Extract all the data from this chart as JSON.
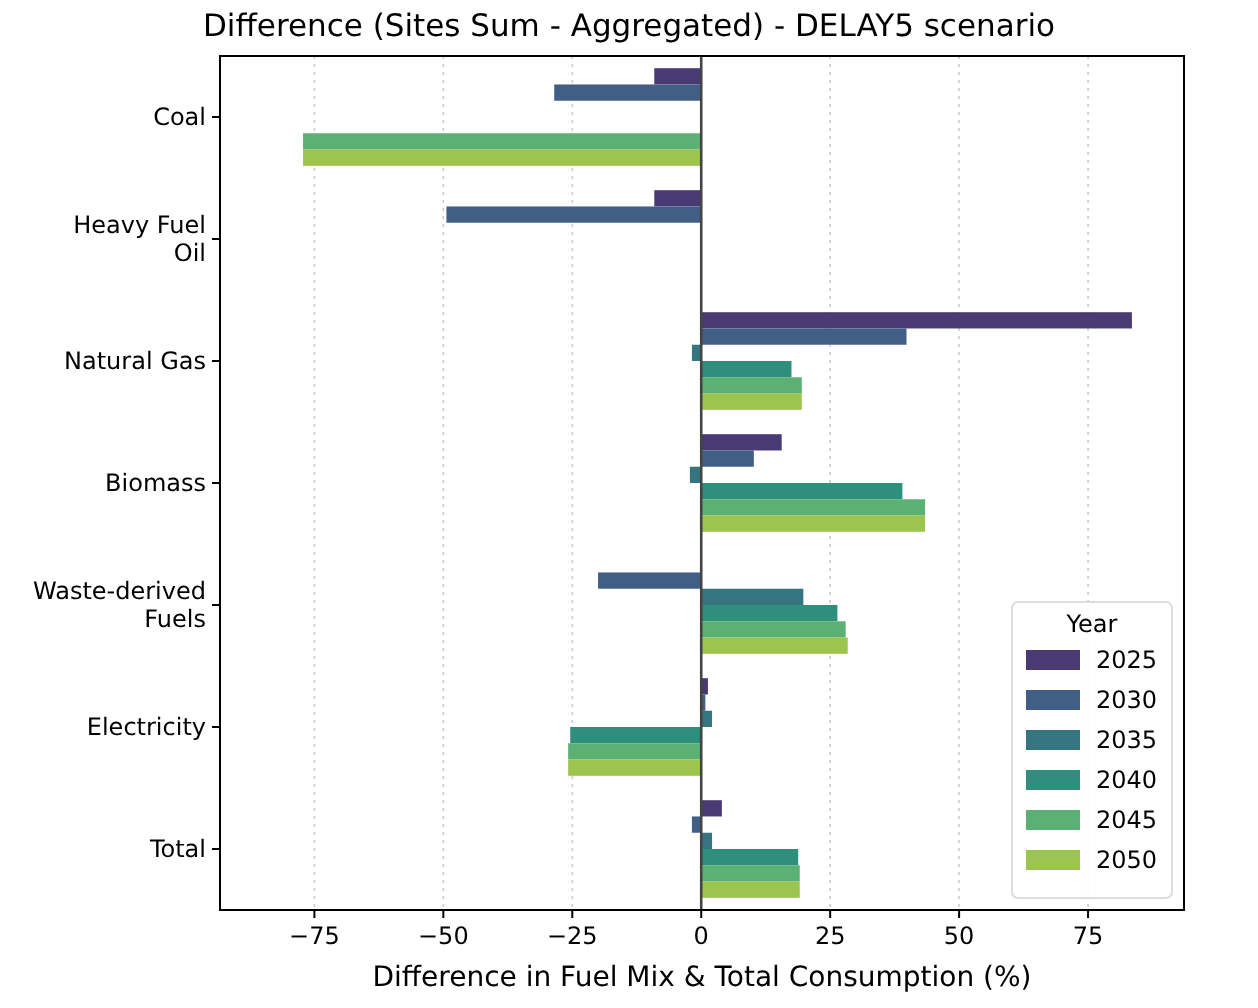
{
  "chart_data": {
    "type": "bar",
    "orientation": "horizontal",
    "title": "Difference (Sites Sum - Aggregated) - DELAY5 scenario",
    "xlabel": "Difference in Fuel Mix & Total Consumption (%)",
    "legend_title": "Year",
    "legend": "bottom right",
    "grid": "x",
    "categories": [
      "Coal",
      "Heavy Fuel Oil",
      "Natural Gas",
      "Biomass",
      "Waste-derived Fuels",
      "Electricity",
      "Total"
    ],
    "xlim": [
      -93.3,
      93.6
    ],
    "xticks": [
      {
        "value": -75,
        "label": "−75"
      },
      {
        "value": -50,
        "label": "−50"
      },
      {
        "value": -25,
        "label": "−25"
      },
      0,
      25,
      50,
      75
    ],
    "ref_lines": [
      {
        "axis": "x",
        "value": 0,
        "color": "#444444"
      }
    ],
    "series": [
      {
        "name": "2025",
        "color": "#4a3a74",
        "values": [
          -9.1,
          -9.1,
          83.5,
          15.6,
          0,
          1.3,
          4.0
        ]
      },
      {
        "name": "2030",
        "color": "#415e85",
        "values": [
          -28.5,
          -49.4,
          39.8,
          10.2,
          -20.0,
          0.8,
          -1.8
        ]
      },
      {
        "name": "2035",
        "color": "#35757f",
        "values": [
          0,
          0,
          -1.8,
          -2.2,
          19.8,
          2.1,
          2.1
        ]
      },
      {
        "name": "2040",
        "color": "#2e8f7d",
        "values": [
          0,
          0,
          17.5,
          39.0,
          26.4,
          -25.4,
          18.8
        ]
      },
      {
        "name": "2045",
        "color": "#5ab173",
        "values": [
          -77.2,
          0,
          19.5,
          43.4,
          28.0,
          -25.8,
          19.1
        ]
      },
      {
        "name": "2050",
        "color": "#9bc54c",
        "values": [
          -77.2,
          0,
          19.5,
          43.4,
          28.4,
          -25.8,
          19.1
        ]
      }
    ]
  }
}
